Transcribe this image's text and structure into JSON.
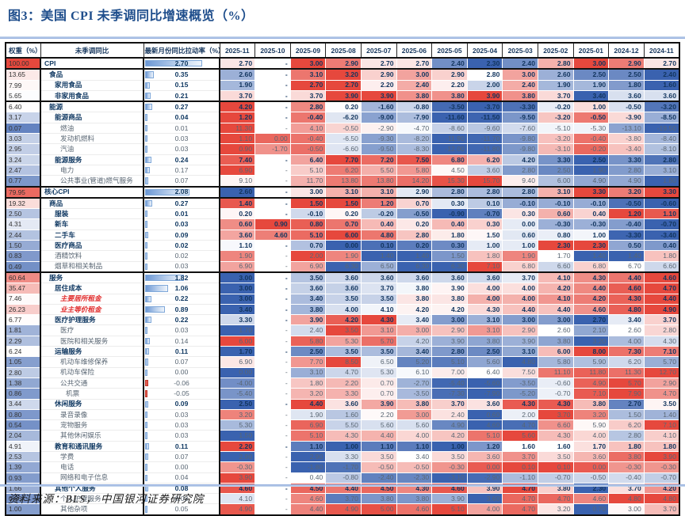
{
  "figure": {
    "title": "图3：美国 CPI 未季调同比增速概览（%）",
    "source": "资料来源：BLS，  中国银河证券研究院"
  },
  "colors": {
    "title_blue": "#1f4e8c",
    "divider_blue": "#8faadc",
    "heat_red": "#e6483d",
    "heat_blue": "#3a62af",
    "bold_text": "#123a63",
    "muted_text": "#596673",
    "red_label": "#e02b2b"
  },
  "chart_data": {
    "type": "heatmap",
    "title": "图3：美国 CPI 未季调同比增速概览（%）",
    "legend_position": "none",
    "grid": false,
    "left_headers": [
      "权重（%）",
      "未季调同比",
      "最新月份同比拉动率（%）"
    ],
    "months": [
      "2025-11",
      "2025-10",
      "2025-09",
      "2025-08",
      "2025-07",
      "2025-06",
      "2025-05",
      "2025-04",
      "2025-03",
      "2025-02",
      "2025-01",
      "2024-12",
      "2024-11"
    ],
    "value_note": "values are YoY % (未季调同比增速); null = 数据缺失(-)",
    "rows": [
      {
        "weight": 100.0,
        "name": "CPI",
        "level": 0,
        "bold": true,
        "red": false,
        "contribution": 2.7,
        "values": [
          2.7,
          null,
          3.0,
          2.9,
          2.7,
          2.7,
          2.4,
          2.3,
          2.4,
          2.8,
          3.0,
          2.9,
          2.7
        ],
        "group_end": true
      },
      {
        "weight": 13.65,
        "name": "食品",
        "level": 1,
        "bold": true,
        "red": false,
        "contribution": 0.35,
        "values": [
          2.6,
          null,
          3.1,
          3.2,
          2.9,
          3.0,
          2.9,
          2.8,
          3.0,
          2.6,
          2.5,
          2.5,
          2.4
        ]
      },
      {
        "weight": 7.99,
        "name": "家用食品",
        "level": 2,
        "bold": true,
        "red": false,
        "contribution": 0.15,
        "values": [
          1.9,
          null,
          2.7,
          2.7,
          2.2,
          2.4,
          2.2,
          2.0,
          2.4,
          1.9,
          1.9,
          1.8,
          1.6
        ]
      },
      {
        "weight": 5.65,
        "name": "非家用食品",
        "level": 2,
        "bold": true,
        "red": false,
        "contribution": 0.21,
        "values": [
          3.7,
          null,
          3.7,
          3.9,
          3.9,
          3.8,
          3.8,
          3.9,
          3.8,
          3.7,
          3.4,
          3.6,
          3.6
        ],
        "group_end": true
      },
      {
        "weight": 6.4,
        "name": "能源",
        "level": 1,
        "bold": true,
        "red": false,
        "contribution": 0.27,
        "values": [
          4.2,
          null,
          2.8,
          0.2,
          -1.6,
          -0.8,
          -3.5,
          -3.7,
          -3.3,
          -0.2,
          1.0,
          -0.5,
          -3.2
        ]
      },
      {
        "weight": 3.17,
        "name": "能源商品",
        "level": 2,
        "bold": true,
        "red": false,
        "contribution": 0.04,
        "values": [
          1.2,
          null,
          -0.4,
          -6.2,
          -9.0,
          -7.9,
          -11.6,
          -11.5,
          -9.5,
          -3.2,
          -0.5,
          -3.9,
          -8.5
        ]
      },
      {
        "weight": 0.07,
        "name": "燃油",
        "level": 3,
        "bold": false,
        "red": false,
        "contribution": 0.01,
        "values": [
          11.3,
          null,
          4.1,
          -0.5,
          -2.9,
          -4.7,
          -8.6,
          -9.6,
          -7.6,
          -5.1,
          -5.3,
          -13.1,
          -19.5
        ]
      },
      {
        "weight": 3.03,
        "name": "发动机燃料",
        "level": 3,
        "bold": false,
        "red": false,
        "contribution": 0.03,
        "values": [
          1.1,
          0.0,
          -0.4,
          -6.5,
          -9.3,
          -8.2,
          -11.9,
          -11.7,
          -9.8,
          -3.2,
          -0.4,
          -3.8,
          -8.4
        ]
      },
      {
        "weight": 2.95,
        "name": "汽油",
        "level": 3,
        "bold": false,
        "red": false,
        "contribution": 0.03,
        "values": [
          0.9,
          -1.7,
          -0.5,
          -6.6,
          -9.5,
          -8.3,
          -12.0,
          -11.8,
          -9.8,
          -3.1,
          -0.2,
          -3.4,
          -8.1
        ]
      },
      {
        "weight": 3.24,
        "name": "能源服务",
        "level": 2,
        "bold": true,
        "red": false,
        "contribution": 0.24,
        "values": [
          7.4,
          null,
          6.4,
          7.7,
          7.2,
          7.5,
          6.8,
          6.2,
          4.2,
          3.3,
          2.5,
          3.3,
          2.8
        ]
      },
      {
        "weight": 2.47,
        "name": "电力",
        "level": 3,
        "bold": false,
        "red": false,
        "contribution": 0.17,
        "values": [
          6.9,
          null,
          5.1,
          6.2,
          5.5,
          5.8,
          4.5,
          3.6,
          2.8,
          2.5,
          1.9,
          2.8,
          3.1
        ]
      },
      {
        "weight": 0.77,
        "name": "公共事业(管道)燃气服务",
        "level": 3,
        "bold": false,
        "red": false,
        "contribution": 0.07,
        "values": [
          9.1,
          null,
          11.7,
          13.8,
          13.8,
          14.2,
          15.3,
          15.7,
          9.4,
          6.0,
          4.9,
          4.9,
          1.8
        ],
        "group_end": true
      },
      {
        "weight": 79.95,
        "name": "核心CPI",
        "level": 0,
        "bold": true,
        "red": false,
        "contribution": 2.08,
        "values": [
          2.6,
          null,
          3.0,
          3.1,
          3.1,
          2.9,
          2.8,
          2.8,
          2.8,
          3.1,
          3.3,
          3.2,
          3.3
        ],
        "group_end": true
      },
      {
        "weight": 19.32,
        "name": "商品",
        "level": 1,
        "bold": true,
        "red": false,
        "contribution": 0.27,
        "values": [
          1.4,
          null,
          1.5,
          1.5,
          1.2,
          0.7,
          0.3,
          0.1,
          -0.1,
          -0.1,
          -0.1,
          -0.5,
          -0.6
        ]
      },
      {
        "weight": 2.5,
        "name": "服装",
        "level": 2,
        "bold": true,
        "red": false,
        "contribution": 0.01,
        "values": [
          0.2,
          null,
          -0.1,
          0.2,
          -0.2,
          -0.5,
          -0.9,
          -0.7,
          0.3,
          0.6,
          0.4,
          1.2,
          1.1
        ]
      },
      {
        "weight": 4.31,
        "name": "新车",
        "level": 2,
        "bold": true,
        "red": false,
        "contribution": 0.03,
        "values": [
          0.6,
          0.9,
          0.8,
          0.7,
          0.4,
          0.2,
          0.4,
          0.3,
          0.0,
          -0.3,
          -0.3,
          -0.4,
          -0.7
        ]
      },
      {
        "weight": 2.44,
        "name": "二手车",
        "level": 2,
        "bold": true,
        "red": false,
        "contribution": 0.09,
        "values": [
          3.6,
          4.6,
          5.1,
          6.0,
          4.8,
          2.8,
          1.8,
          1.5,
          0.6,
          0.8,
          1.0,
          -3.3,
          -3.4
        ]
      },
      {
        "weight": 1.5,
        "name": "医疗商品",
        "level": 2,
        "bold": true,
        "red": false,
        "contribution": 0.02,
        "values": [
          1.1,
          null,
          0.7,
          0.0,
          0.1,
          0.2,
          0.3,
          1.0,
          1.0,
          2.3,
          2.3,
          0.5,
          0.4
        ]
      },
      {
        "weight": 0.83,
        "name": "酒精饮料",
        "level": 2,
        "bold": false,
        "red": false,
        "contribution": 0.02,
        "values": [
          1.9,
          null,
          2.0,
          1.9,
          1.4,
          1.4,
          1.5,
          1.8,
          1.9,
          1.7,
          1.4,
          1.4,
          1.8
        ]
      },
      {
        "weight": 0.49,
        "name": "烟草和相关制品",
        "level": 2,
        "bold": false,
        "red": false,
        "contribution": 0.03,
        "values": [
          6.9,
          null,
          6.9,
          6.3,
          6.5,
          6.3,
          6.3,
          7.1,
          6.8,
          6.6,
          6.8,
          6.7,
          6.6
        ],
        "group_end": true
      },
      {
        "weight": 60.64,
        "name": "服务",
        "level": 1,
        "bold": true,
        "red": false,
        "contribution": 1.82,
        "values": [
          3.0,
          null,
          3.5,
          3.6,
          3.6,
          3.6,
          3.6,
          3.6,
          3.7,
          4.1,
          4.3,
          4.4,
          4.6
        ]
      },
      {
        "weight": 35.47,
        "name": "居住成本",
        "level": 2,
        "bold": true,
        "red": false,
        "contribution": 1.06,
        "values": [
          3.0,
          null,
          3.6,
          3.6,
          3.7,
          3.8,
          3.9,
          4.0,
          4.0,
          4.2,
          4.4,
          4.6,
          4.7
        ]
      },
      {
        "weight": 7.46,
        "name": "主要居所租金",
        "level": 3,
        "bold": false,
        "red": true,
        "contribution": 0.22,
        "values": [
          3.0,
          null,
          3.4,
          3.5,
          3.5,
          3.8,
          3.8,
          4.0,
          4.0,
          4.1,
          4.2,
          4.3,
          4.4
        ]
      },
      {
        "weight": 26.23,
        "name": "业主等价租金",
        "level": 3,
        "bold": false,
        "red": true,
        "contribution": 0.89,
        "values": [
          3.4,
          null,
          3.8,
          4.0,
          4.1,
          4.2,
          4.2,
          4.3,
          4.4,
          4.4,
          4.6,
          4.8,
          4.9
        ]
      },
      {
        "weight": 6.77,
        "name": "医疗护理服务",
        "level": 2,
        "bold": true,
        "red": false,
        "contribution": 0.22,
        "values": [
          3.3,
          null,
          3.9,
          4.2,
          4.3,
          3.4,
          3.0,
          3.1,
          3.0,
          3.0,
          2.7,
          3.4,
          3.7
        ]
      },
      {
        "weight": 1.81,
        "name": "医疗",
        "level": 3,
        "bold": false,
        "red": false,
        "contribution": 0.03,
        "values": [
          1.7,
          null,
          2.4,
          3.5,
          3.1,
          3.0,
          2.9,
          3.1,
          2.9,
          2.6,
          2.1,
          2.6,
          2.8
        ]
      },
      {
        "weight": 2.29,
        "name": "医院和相关服务",
        "level": 3,
        "bold": false,
        "red": false,
        "contribution": 0.14,
        "values": [
          6.0,
          null,
          5.8,
          5.3,
          5.7,
          4.2,
          3.9,
          3.8,
          3.9,
          3.8,
          3.2,
          4.0,
          4.3
        ]
      },
      {
        "weight": 6.24,
        "name": "运输服务",
        "level": 2,
        "bold": true,
        "red": false,
        "contribution": 0.11,
        "values": [
          1.7,
          null,
          2.5,
          3.5,
          3.5,
          3.4,
          2.8,
          2.5,
          3.1,
          6.0,
          8.0,
          7.3,
          7.1
        ]
      },
      {
        "weight": 1.05,
        "name": "机动车维修保养",
        "level": 3,
        "bold": false,
        "red": false,
        "contribution": 0.07,
        "values": [
          6.9,
          null,
          7.7,
          8.5,
          6.5,
          5.2,
          5.1,
          5.6,
          4.8,
          5.8,
          5.9,
          6.2,
          5.7
        ]
      },
      {
        "weight": 2.8,
        "name": "机动车保险",
        "level": 3,
        "bold": false,
        "red": false,
        "contribution": 0.0,
        "values": [
          0.0,
          null,
          3.1,
          4.7,
          5.3,
          6.1,
          7.0,
          6.4,
          7.5,
          11.1,
          11.8,
          11.3,
          12.7
        ]
      },
      {
        "weight": 1.38,
        "name": "公共交通",
        "level": 3,
        "bold": false,
        "red": false,
        "contribution": -0.06,
        "values": [
          -4.0,
          null,
          1.8,
          2.2,
          0.7,
          -2.7,
          -5.4,
          -5.6,
          -3.5,
          -0.6,
          4.9,
          5.7,
          2.9
        ]
      },
      {
        "weight": 0.86,
        "name": "机票",
        "level": 4,
        "bold": false,
        "red": false,
        "contribution": -0.05,
        "values": [
          -5.4,
          null,
          3.2,
          3.3,
          0.7,
          -3.5,
          -7.3,
          -7.9,
          -5.2,
          -0.7,
          7.1,
          7.9,
          4.7
        ]
      },
      {
        "weight": 3.44,
        "name": "休闲服务",
        "level": 2,
        "bold": true,
        "red": false,
        "contribution": 0.09,
        "values": [
          2.5,
          null,
          4.4,
          3.6,
          3.9,
          3.8,
          3.7,
          3.6,
          4.3,
          4.3,
          3.8,
          2.7,
          3.5
        ]
      },
      {
        "weight": 0.8,
        "name": "录音录像",
        "level": 3,
        "bold": false,
        "red": false,
        "contribution": 0.03,
        "values": [
          3.2,
          null,
          1.9,
          1.6,
          2.2,
          3.0,
          2.4,
          0.6,
          2.0,
          3.7,
          3.2,
          1.5,
          1.4
        ]
      },
      {
        "weight": 0.54,
        "name": "宠物服务",
        "level": 3,
        "bold": false,
        "red": false,
        "contribution": 0.03,
        "values": [
          5.3,
          null,
          6.9,
          5.5,
          5.6,
          5.6,
          4.9,
          4.6,
          4.7,
          6.6,
          5.9,
          6.2,
          7.1
        ]
      },
      {
        "weight": 2.04,
        "name": "其他休闲娱乐",
        "level": 3,
        "bold": false,
        "red": false,
        "contribution": 0.03,
        "values": [
          1.5,
          null,
          5.1,
          4.3,
          4.4,
          4.0,
          4.2,
          5.1,
          5.6,
          4.3,
          4.0,
          2.8,
          4.1
        ]
      },
      {
        "weight": 4.91,
        "name": "教育和通讯服务",
        "level": 2,
        "bold": true,
        "red": false,
        "contribution": 0.11,
        "values": [
          2.2,
          null,
          1.1,
          1.0,
          1.1,
          1.1,
          1.0,
          1.2,
          1.6,
          1.6,
          1.7,
          1.8,
          1.8
        ]
      },
      {
        "weight": 2.53,
        "name": "学费",
        "level": 3,
        "bold": false,
        "red": false,
        "contribution": 0.07,
        "values": [
          2.9,
          null,
          2.9,
          3.3,
          3.5,
          3.4,
          3.5,
          3.6,
          3.7,
          3.5,
          3.6,
          3.8,
          3.9
        ]
      },
      {
        "weight": 1.39,
        "name": "电话",
        "level": 3,
        "bold": false,
        "red": false,
        "contribution": 0.0,
        "values": [
          -0.3,
          null,
          -1.8,
          -1.7,
          -0.5,
          -0.5,
          -0.3,
          0.0,
          0.1,
          0.1,
          0.0,
          -0.3,
          -0.3
        ]
      },
      {
        "weight": 0.93,
        "name": "网络和电子信息",
        "level": 3,
        "bold": false,
        "red": false,
        "contribution": 0.04,
        "values": [
          3.9,
          null,
          0.4,
          -0.8,
          -2.4,
          -2.3,
          -3.1,
          -2.9,
          -1.1,
          -0.7,
          -0.5,
          -0.4,
          -0.7
        ]
      },
      {
        "weight": 1.66,
        "name": "其他个人服务",
        "level": 2,
        "bold": true,
        "red": false,
        "contribution": 0.08,
        "values": [
          4.6,
          null,
          4.5,
          4.4,
          4.5,
          4.3,
          4.6,
          3.9,
          4.7,
          3.8,
          2.3,
          3.7,
          4.2
        ]
      },
      {
        "weight": 0.66,
        "name": "个人护理服务",
        "level": 3,
        "bold": false,
        "red": false,
        "contribution": 0.03,
        "values": [
          4.1,
          null,
          4.6,
          3.7,
          3.8,
          3.8,
          3.9,
          3.6,
          4.7,
          4.7,
          4.6,
          4.8,
          4.8
        ]
      },
      {
        "weight": 1.0,
        "name": "其他杂项",
        "level": 3,
        "bold": false,
        "red": false,
        "contribution": 0.05,
        "values": [
          4.9,
          null,
          4.4,
          4.9,
          5.0,
          4.6,
          5.1,
          4.0,
          4.7,
          3.2,
          0.7,
          3.0,
          3.7
        ]
      }
    ]
  }
}
